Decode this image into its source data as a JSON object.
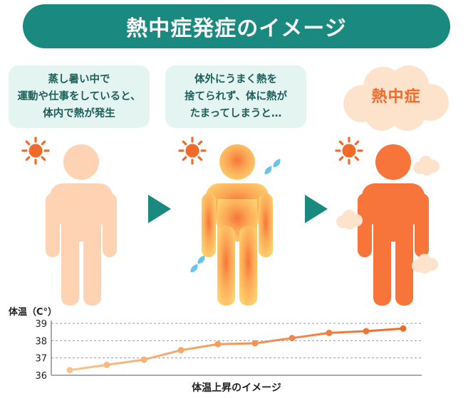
{
  "title": "熱中症発症のイメージ",
  "stages": [
    {
      "lines": [
        "蒸し暑い中で",
        "運動や仕事をしていると、",
        "体内で熱が発生"
      ]
    },
    {
      "lines": [
        "体外にうまく熱を",
        "捨てられず、体に熱が",
        "たまってしまうと…"
      ]
    },
    {
      "label": "熱中症"
    }
  ],
  "colors": {
    "title_bg": "#1a8a80",
    "bubble_bg": "#e3f4f1",
    "arrow": "#1a8a80",
    "sun": "#f26a2a",
    "figure_stage1": "#fdd3b4",
    "figure_stage2_center": "#f7743a",
    "figure_stage2_edge": "#ffd06e",
    "figure_stage3": "#f7743a",
    "line": "#f8c58a",
    "line_hot": "#f26a2a"
  },
  "chart_data": {
    "type": "line",
    "ylabel": "体温（C°）",
    "xlabel": "体温上昇のイメージ",
    "ylim": [
      36,
      39
    ],
    "yticks": [
      36,
      37,
      38,
      39
    ],
    "grid": "dashed horizontal",
    "values": [
      36.3,
      36.6,
      36.9,
      37.45,
      37.8,
      37.85,
      38.15,
      38.45,
      38.55,
      38.7
    ]
  }
}
